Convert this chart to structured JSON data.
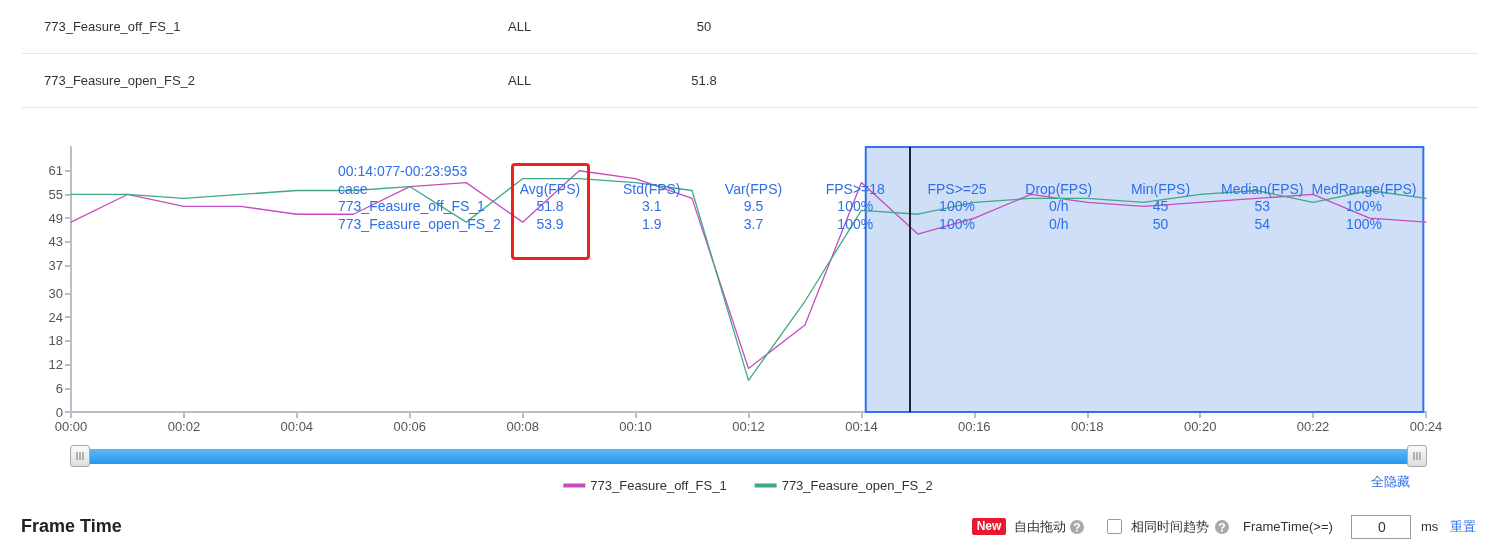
{
  "chart_data": {
    "type": "line",
    "x": [
      0,
      1,
      2,
      3,
      4,
      5,
      6,
      7,
      8,
      9,
      10,
      11,
      12,
      13,
      14,
      15,
      16,
      17,
      18,
      19,
      20,
      21,
      22,
      23,
      24
    ],
    "series": [
      {
        "name": "773_Feasure_off_FS_1",
        "color": "#c64cbf",
        "values": [
          48,
          55,
          52,
          52,
          50,
          50,
          57,
          58,
          48,
          61,
          59,
          54,
          11,
          22,
          58,
          45,
          49,
          55,
          53,
          52,
          53,
          54,
          55,
          49,
          48
        ]
      },
      {
        "name": "773_Feasure_open_FS_2",
        "color": "#3fa985",
        "values": [
          55,
          55,
          54,
          55,
          56,
          56,
          57,
          48,
          59,
          59,
          58,
          56,
          8,
          28,
          51,
          50,
          53,
          54,
          54,
          53,
          55,
          56,
          53,
          56,
          54
        ]
      }
    ],
    "xlim": [
      0,
      24
    ],
    "xticks": [
      {
        "value": 0,
        "label": "00:00"
      },
      {
        "value": 2,
        "label": "00:02"
      },
      {
        "value": 4,
        "label": "00:04"
      },
      {
        "value": 6,
        "label": "00:06"
      },
      {
        "value": 8,
        "label": "00:08"
      },
      {
        "value": 10,
        "label": "00:10"
      },
      {
        "value": 12,
        "label": "00:12"
      },
      {
        "value": 14,
        "label": "00:14"
      },
      {
        "value": 16,
        "label": "00:16"
      },
      {
        "value": 18,
        "label": "00:18"
      },
      {
        "value": 20,
        "label": "00:20"
      },
      {
        "value": 22,
        "label": "00:22"
      },
      {
        "value": 24,
        "label": "00:24"
      }
    ],
    "ylim": [
      0,
      67
    ],
    "yticks": [
      0,
      6,
      12,
      18,
      24,
      30,
      37,
      43,
      49,
      55,
      61
    ],
    "grid": false,
    "legend": "bottom",
    "marker": "none",
    "line_style": "solid",
    "bands": [
      {
        "axis": "x",
        "from": 14.077,
        "to": 23.953,
        "color": "#d0dff8"
      }
    ],
    "ref_lines": [
      {
        "axis": "x",
        "value": 14.85,
        "color": "#1e2433"
      }
    ],
    "annotations": [
      "773_Feasure_off_FS_1",
      "ALL",
      "50",
      "773_Feasure_open_FS_2",
      "ALL",
      "51.8",
      "00:14:077-00:23:953",
      "case",
      "Avg(FPS)",
      "Std(FPS)",
      "Var(FPS)",
      "FPS>=18",
      "FPS>=25",
      "Drop(FPS)",
      "Min(FPS)",
      "Median(FPS)",
      "MedRange(FPS)",
      "773_Feasure_off_FS_1",
      "51.8",
      "3.1",
      "9.5",
      "100%",
      "100%",
      "0/h",
      "45",
      "53",
      "100%",
      "773_Feasure_open_FS_2",
      "53.9",
      "1.9",
      "3.7",
      "100%",
      "100%",
      "0/h",
      "50",
      "54",
      "100%",
      "全隐藏",
      "Frame Time",
      "New",
      "自由拖动",
      "相同时间趋势",
      "FrameTime(>=)",
      "0",
      "ms",
      "重置"
    ]
  }
}
